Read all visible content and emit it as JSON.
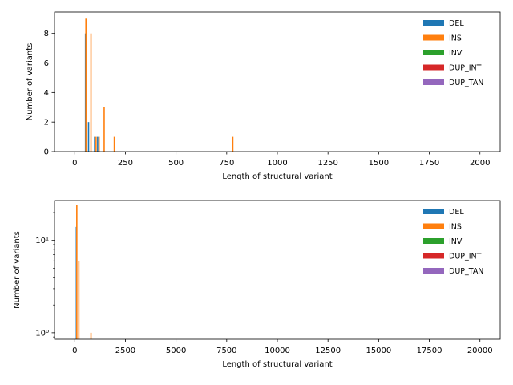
{
  "chart_data": [
    {
      "type": "bar",
      "subtype": "histogram",
      "xlabel": "Length of structural variant",
      "ylabel": "Number of variants",
      "xlim": [
        -100,
        2100
      ],
      "ylim": [
        0,
        9.45
      ],
      "xscale": "linear",
      "yscale": "linear",
      "xticks": [
        0,
        250,
        500,
        750,
        1000,
        1250,
        1500,
        1750,
        2000
      ],
      "yticks": [
        0,
        2,
        4,
        6,
        8
      ],
      "legend_position": "top-right",
      "bin_width": 10,
      "series": [
        {
          "name": "DEL",
          "color": "#1f77b4",
          "bins": [
            [
              50,
              8
            ],
            [
              55,
              3
            ],
            [
              65,
              2
            ],
            [
              95,
              1
            ],
            [
              110,
              1
            ]
          ]
        },
        {
          "name": "INS",
          "color": "#ff7f0e",
          "bins": [
            [
              50,
              9
            ],
            [
              75,
              8
            ],
            [
              100,
              1
            ],
            [
              115,
              1
            ],
            [
              140,
              3
            ],
            [
              190,
              1
            ],
            [
              775,
              1
            ]
          ]
        },
        {
          "name": "INV",
          "color": "#2ca02c",
          "bins": []
        },
        {
          "name": "DUP_INT",
          "color": "#d62728",
          "bins": []
        },
        {
          "name": "DUP_TAN",
          "color": "#9467bd",
          "bins": []
        }
      ]
    },
    {
      "type": "bar",
      "subtype": "histogram",
      "xlabel": "Length of structural variant",
      "ylabel": "Number of variants",
      "xlim": [
        -1000,
        21000
      ],
      "ylim": [
        0.85,
        27
      ],
      "xscale": "linear",
      "yscale": "log",
      "xticks": [
        0,
        2500,
        5000,
        7500,
        10000,
        12500,
        15000,
        17500,
        20000
      ],
      "yticks": [
        1,
        10
      ],
      "ytick_labels": [
        "10⁰",
        "10¹"
      ],
      "legend_position": "top-right",
      "bin_width": 100,
      "series": [
        {
          "name": "DEL",
          "color": "#1f77b4",
          "bins": [
            [
              50,
              14
            ]
          ]
        },
        {
          "name": "INS",
          "color": "#ff7f0e",
          "bins": [
            [
              50,
              24
            ],
            [
              150,
              6
            ],
            [
              750,
              1
            ]
          ]
        },
        {
          "name": "INV",
          "color": "#2ca02c",
          "bins": []
        },
        {
          "name": "DUP_INT",
          "color": "#d62728",
          "bins": []
        },
        {
          "name": "DUP_TAN",
          "color": "#9467bd",
          "bins": []
        }
      ]
    }
  ]
}
